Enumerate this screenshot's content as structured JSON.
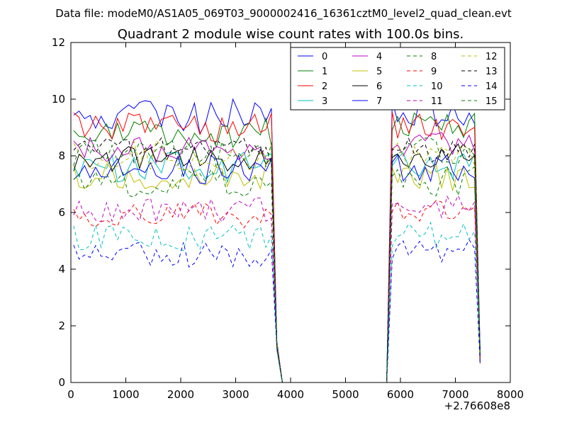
{
  "figure": {
    "suptitle": "Data file: modeM0/AS1A05_069T03_9000002416_16361cztM0_level2_quad_clean.evt",
    "offset_label": "+2.76608e8"
  },
  "chart_data": {
    "type": "line",
    "title": "Quadrant 2 module wise count rates with 100.0s bins.",
    "xlabel": "",
    "ylabel": "",
    "xlim": [
      0,
      8000
    ],
    "ylim": [
      0,
      12
    ],
    "x_ticks": [
      "0",
      "1000",
      "2000",
      "3000",
      "4000",
      "5000",
      "6000",
      "7000",
      "8000"
    ],
    "y_ticks": [
      "0",
      "2",
      "4",
      "6",
      "8",
      "10",
      "12"
    ],
    "grid": false,
    "legend_position": "top-right",
    "segments": [
      {
        "x_start": 50,
        "x_end": 3650,
        "step": 100
      },
      {
        "x_start": 5850,
        "x_end": 7450,
        "step": 100
      }
    ],
    "gap_points": [
      [
        3750,
        1.6
      ],
      [
        3850,
        0.0
      ],
      [
        5750,
        0.0
      ]
    ],
    "series": [
      {
        "name": "0",
        "color": "#0000ff",
        "dash": "solid",
        "base1": 9.4,
        "base2": 9.5,
        "amp": 0.35,
        "seed": 1
      },
      {
        "name": "1",
        "color": "#008000",
        "dash": "solid",
        "base1": 8.8,
        "base2": 9.0,
        "amp": 0.3,
        "seed": 2
      },
      {
        "name": "2",
        "color": "#ff0000",
        "dash": "solid",
        "base1": 9.0,
        "base2": 9.1,
        "amp": 0.3,
        "seed": 3
      },
      {
        "name": "3",
        "color": "#00bfbf",
        "dash": "solid",
        "base1": 7.6,
        "base2": 7.7,
        "amp": 0.3,
        "seed": 4
      },
      {
        "name": "4",
        "color": "#bf00bf",
        "dash": "solid",
        "base1": 8.2,
        "base2": 8.4,
        "amp": 0.25,
        "seed": 5
      },
      {
        "name": "5",
        "color": "#bfbf00",
        "dash": "solid",
        "base1": 7.3,
        "base2": 7.3,
        "amp": 0.3,
        "seed": 6
      },
      {
        "name": "6",
        "color": "#000000",
        "dash": "solid",
        "base1": 7.9,
        "base2": 8.0,
        "amp": 0.25,
        "seed": 7
      },
      {
        "name": "7",
        "color": "#0000ff",
        "dash": "solid",
        "base1": 7.5,
        "base2": 7.6,
        "amp": 0.3,
        "seed": 8
      },
      {
        "name": "8",
        "color": "#008000",
        "dash": "dashed",
        "base1": 7.0,
        "base2": 7.1,
        "amp": 0.3,
        "seed": 9
      },
      {
        "name": "9",
        "color": "#ff0000",
        "dash": "dashed",
        "base1": 5.9,
        "base2": 6.0,
        "amp": 0.25,
        "seed": 10
      },
      {
        "name": "10",
        "color": "#00bfbf",
        "dash": "dashed",
        "base1": 5.1,
        "base2": 5.2,
        "amp": 0.25,
        "seed": 11
      },
      {
        "name": "11",
        "color": "#bf00bf",
        "dash": "dashed",
        "base1": 6.1,
        "base2": 6.2,
        "amp": 0.25,
        "seed": 12
      },
      {
        "name": "12",
        "color": "#bfbf00",
        "dash": "dashed",
        "base1": 8.0,
        "base2": 8.1,
        "amp": 0.3,
        "seed": 13
      },
      {
        "name": "13",
        "color": "#000000",
        "dash": "dashed",
        "base1": 8.2,
        "base2": 8.2,
        "amp": 0.25,
        "seed": 14
      },
      {
        "name": "14",
        "color": "#0000ff",
        "dash": "dashed",
        "base1": 4.5,
        "base2": 4.6,
        "amp": 0.25,
        "seed": 15
      },
      {
        "name": "15",
        "color": "#008000",
        "dash": "dashed",
        "base1": 8.1,
        "base2": 8.2,
        "amp": 0.3,
        "seed": 16
      }
    ]
  }
}
